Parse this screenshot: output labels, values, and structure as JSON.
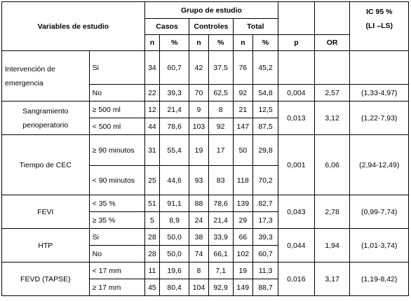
{
  "header": {
    "variables": "Variables de estudio",
    "group": "Grupo de estudio",
    "cases": "Casos",
    "controls": "Controles",
    "total": "Total",
    "n": "n",
    "pct": "%",
    "p": "p",
    "or": "OR",
    "ci_line1": "IC 95 %",
    "ci_line2": "(LI –LS)"
  },
  "variables": [
    {
      "name": "Intervención de emergencia",
      "p": "0,004",
      "or": "2,57",
      "ci": "(1,33-4,97)",
      "rows": [
        {
          "cat": "Si",
          "cn": "34",
          "cp": "60,7",
          "kn": "42",
          "kp": "37,5",
          "tn": "76",
          "tp": "45,2"
        },
        {
          "cat": "No",
          "cn": "22",
          "cp": "39,3",
          "kn": "70",
          "kp": "62,5",
          "tn": "92",
          "tp": "54,8"
        }
      ]
    },
    {
      "name": "Sangramiento perioperatorio",
      "p": "0,013",
      "or": "3,12",
      "ci": "(1,22-7,93)",
      "rows": [
        {
          "cat": "≥ 500 ml",
          "cn": "12",
          "cp": "21,4",
          "kn": "9",
          "kp": "8",
          "tn": "21",
          "tp": "12,5"
        },
        {
          "cat": "< 500 ml",
          "cn": "44",
          "cp": "78,6",
          "kn": "103",
          "kp": "92",
          "tn": "147",
          "tp": "87,5"
        }
      ]
    },
    {
      "name": "Tiempo de CEC",
      "p": "0,001",
      "or": "6,06",
      "ci": "(2,94-12,49)",
      "rows": [
        {
          "cat": "≥ 90 minutos",
          "cn": "31",
          "cp": "55,4",
          "kn": "19",
          "kp": "17",
          "tn": "50",
          "tp": "29,8"
        },
        {
          "cat": "< 90 minutos",
          "cn": "25",
          "cp": "44,6",
          "kn": "93",
          "kp": "83",
          "tn": "118",
          "tp": "70,2"
        }
      ]
    },
    {
      "name": "FEVI",
      "p": "0,043",
      "or": "2,78",
      "ci": "(0,99-7,74)",
      "rows": [
        {
          "cat": "< 35 %",
          "cn": "51",
          "cp": "91,1",
          "kn": "88",
          "kp": "78,6",
          "tn": "139",
          "tp": "82,7"
        },
        {
          "cat": "≥ 35 %",
          "cn": "5",
          "cp": "8,9",
          "kn": "24",
          "kp": "21,4",
          "tn": "29",
          "tp": "17,3"
        }
      ]
    },
    {
      "name": "HTP",
      "p": "0,044",
      "or": "1,94",
      "ci": "(1,01-3,74)",
      "rows": [
        {
          "cat": "Si",
          "cn": "28",
          "cp": "50,0",
          "kn": "38",
          "kp": "33,9",
          "tn": "66",
          "tp": "39,3"
        },
        {
          "cat": "No",
          "cn": "28",
          "cp": "50,0",
          "kn": "74",
          "kp": "66,1",
          "tn": "102",
          "tp": "60,7"
        }
      ]
    },
    {
      "name": "FEVD (TAPSE)",
      "p": "0,016",
      "or": "3,17",
      "ci": "(1,19-8,42)",
      "rows": [
        {
          "cat": "< 17 mm",
          "cn": "11",
          "cp": "19,6",
          "kn": "8",
          "kp": "7,1",
          "tn": "19",
          "tp": "11,3"
        },
        {
          "cat": "≥ 17 mm",
          "cn": "45",
          "cp": "80,4",
          "kn": "104",
          "kp": "92,9",
          "tn": "149",
          "tp": "88,7"
        }
      ]
    }
  ]
}
